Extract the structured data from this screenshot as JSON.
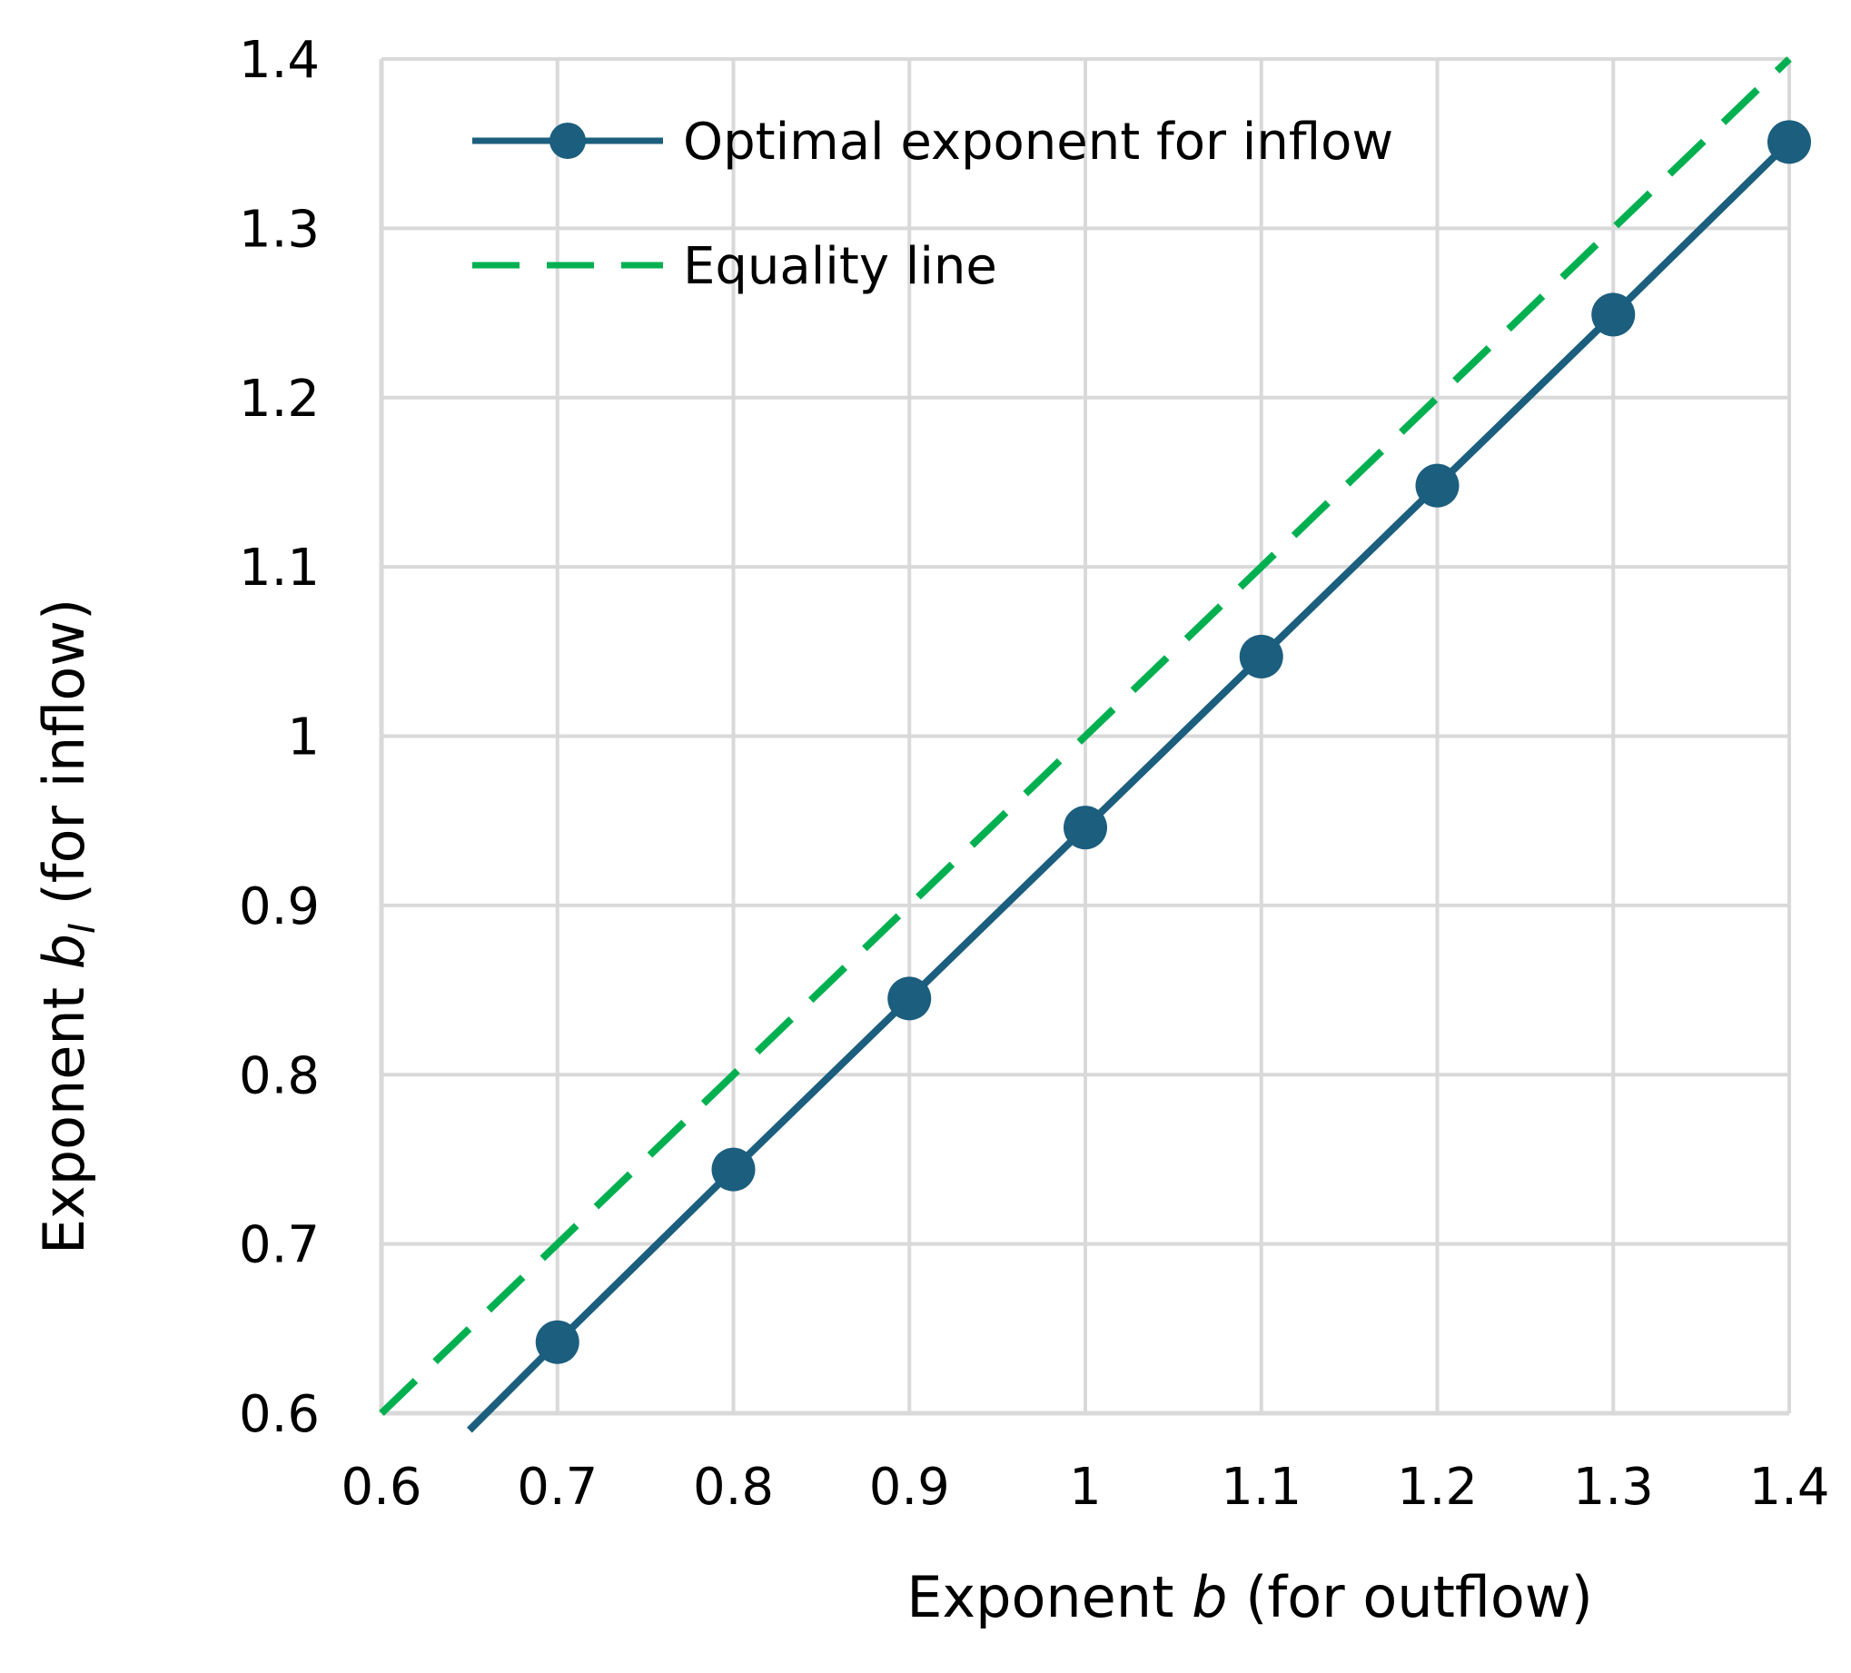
{
  "chart_data": {
    "type": "line",
    "xlabel_parts": [
      "Exponent ",
      "b",
      " (for outflow)"
    ],
    "ylabel_parts": [
      "Exponent ",
      "b",
      "I",
      " (for inflow)"
    ],
    "xlim": [
      0.6,
      1.4
    ],
    "ylim": [
      0.6,
      1.4
    ],
    "xticks": [
      0.6,
      0.7,
      0.8,
      0.9,
      1,
      1.1,
      1.2,
      1.3,
      1.4
    ],
    "yticks": [
      0.6,
      0.7,
      0.8,
      0.9,
      1,
      1.1,
      1.2,
      1.3,
      1.4
    ],
    "grid": true,
    "legend_position": "top-left",
    "series": [
      {
        "name": "Optimal exponent for inflow",
        "color": "#1b5e7e",
        "style": "solid",
        "markers": true,
        "x": [
          0.65,
          0.7,
          0.8,
          0.9,
          1.0,
          1.1,
          1.2,
          1.3,
          1.4
        ],
        "y": [
          0.59,
          0.642,
          0.744,
          0.845,
          0.946,
          1.047,
          1.148,
          1.249,
          1.351
        ],
        "marker_x": [
          0.7,
          0.8,
          0.9,
          1.0,
          1.1,
          1.2,
          1.3,
          1.4
        ],
        "marker_y": [
          0.642,
          0.744,
          0.845,
          0.946,
          1.047,
          1.148,
          1.249,
          1.351
        ]
      },
      {
        "name": "Equality line",
        "color": "#00b050",
        "style": "dashed",
        "markers": false,
        "x": [
          0.6,
          1.4
        ],
        "y": [
          0.6,
          1.4
        ]
      }
    ]
  }
}
